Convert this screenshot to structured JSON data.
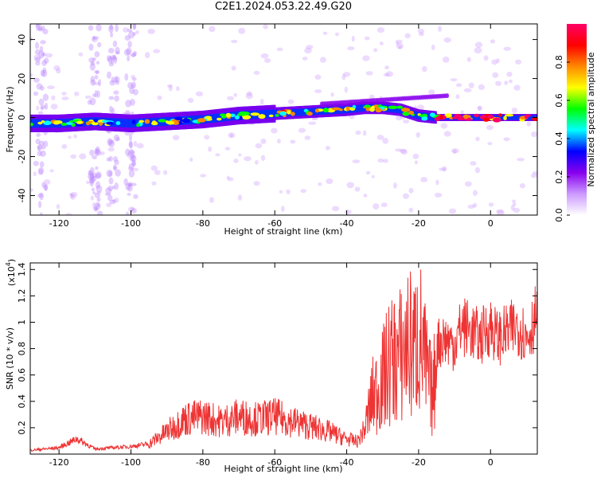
{
  "title": "C2E1.2024.053.22.49.G20",
  "chart_data": [
    {
      "type": "heatmap",
      "xlabel": "Height of straight line (km)",
      "ylabel": "Frequency (Hz)",
      "xlim": [
        -128,
        13
      ],
      "ylim": [
        -50,
        48
      ],
      "xticks": [
        -120,
        -100,
        -80,
        -60,
        -40,
        -20,
        0
      ],
      "yticks": [
        -40,
        -20,
        0,
        20,
        40
      ],
      "colorbar": {
        "label": "Normalized spectral amplitude",
        "range": [
          0,
          1
        ],
        "ticks": [
          0.0,
          0.2,
          0.4,
          0.6,
          0.8
        ],
        "colors": [
          "#ffffff",
          "#cc99ff",
          "#8800ee",
          "#0000ff",
          "#00ffff",
          "#00ff00",
          "#ffff00",
          "#ff8800",
          "#ff0000",
          "#ff0066"
        ]
      },
      "ridge": {
        "x": [
          -128,
          -120,
          -110,
          -100,
          -90,
          -80,
          -70,
          -60,
          -50,
          -40,
          -35,
          -30,
          -25,
          -20,
          -15,
          -10,
          -5,
          0,
          5,
          13
        ],
        "freq": [
          -3,
          -3,
          -2,
          -3,
          -2,
          -1,
          1,
          2,
          3,
          4,
          5,
          5,
          4,
          1,
          0,
          0,
          0,
          0,
          0,
          0
        ]
      }
    },
    {
      "type": "line",
      "xlabel": "Height of straight line (km)",
      "ylabel": "SNR (10 * v/v)",
      "yscale_label": "(x10",
      "yscale_exp": "4",
      "yscale_close": ")",
      "xlim": [
        -128,
        13
      ],
      "ylim": [
        0,
        1.45
      ],
      "xticks": [
        -120,
        -100,
        -80,
        -60,
        -40,
        -20,
        0
      ],
      "yticks": [
        0.2,
        0.4,
        0.6,
        0.8,
        1.0,
        1.2,
        1.4
      ],
      "series": [
        {
          "color": "#ee3333",
          "x": [
            -128,
            -120,
            -115,
            -110,
            -105,
            -100,
            -95,
            -90,
            -85,
            -80,
            -75,
            -70,
            -65,
            -60,
            -55,
            -50,
            -45,
            -40,
            -37,
            -35,
            -33,
            -30,
            -28,
            -25,
            -23,
            -21,
            -20,
            -18,
            -16,
            -15,
            -13,
            -10,
            -8,
            -5,
            -3,
            0,
            2,
            5,
            8,
            10,
            13
          ],
          "y": [
            0.03,
            0.05,
            0.12,
            0.04,
            0.05,
            0.06,
            0.08,
            0.18,
            0.28,
            0.3,
            0.26,
            0.3,
            0.28,
            0.3,
            0.26,
            0.22,
            0.18,
            0.12,
            0.1,
            0.2,
            0.45,
            0.6,
            0.75,
            0.8,
            0.9,
            0.85,
            1.0,
            0.7,
            0.45,
            0.85,
            0.9,
            0.85,
            1.0,
            0.95,
            0.9,
            1.0,
            0.9,
            0.95,
            1.0,
            0.9,
            1.1
          ]
        }
      ]
    }
  ]
}
